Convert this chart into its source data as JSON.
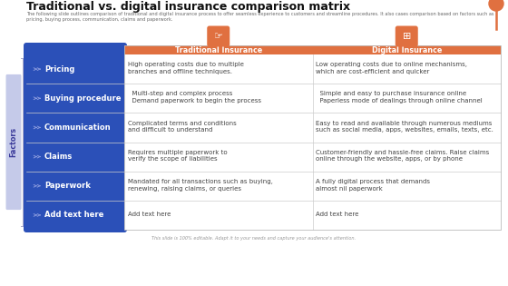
{
  "title": "Traditional vs. digital insurance comparison matrix",
  "subtitle": "The following slide outlines comparison of traditional and digital insurance process to offer seamless experience to customers and streamline procedures. It also cases comparison based on factors such as pricing, buying process, communication, claims and paperwork.",
  "footer": "This slide is 100% editable. Adapt it to your needs and capture your audience's attention.",
  "col_headers": [
    "Traditional Insurance",
    "Digital Insurance"
  ],
  "col_header_color": "#E07040",
  "col_header_text_color": "#ffffff",
  "row_labels": [
    "Pricing",
    "Buying procedure",
    "Communication",
    "Claims",
    "Paperwork",
    "Add text here"
  ],
  "row_label_bg": "#2B4EAE",
  "row_label_text_color": "#ffffff",
  "factors_label": "Factors",
  "factors_bg": "#C5CAE9",
  "factors_text_color": "#3a3a9a",
  "grid_line_color": "#cccccc",
  "blue_panel_color": "#2B50B8",
  "traditional_col": [
    "High operating costs due to multiple\nbranches and offline techniques.",
    "  Multi-step and complex process\n  Demand paperwork to begin the process",
    "Complicated terms and conditions\nand difficult to understand",
    "Requires multiple paperwork to\nverify the scope of liabilities",
    "Mandated for all transactions such as buying,\nrenewing, raising claims, or queries",
    "Add text here"
  ],
  "digital_col": [
    "Low operating costs due to online mechanisms,\nwhich are cost-efficient and quicker",
    "  Simple and easy to purchase insurance online\n  Paperless mode of dealings through online channel",
    "Easy to read and available through numerous mediums\nsuch as social media, apps, websites, emails, texts, etc.",
    "Customer-friendly and hassle-free claims. Raise claims\nonline through the website, apps, or by phone",
    "A fully digital process that demands\nalmost nil paperwork",
    "Add text here"
  ],
  "bg_color": "#ffffff",
  "title_color": "#111111",
  "cell_text_color": "#444444",
  "cell_text_size": 5.0,
  "top_decoration_color": "#E07040",
  "arrow_icon_color": "#8899dd"
}
